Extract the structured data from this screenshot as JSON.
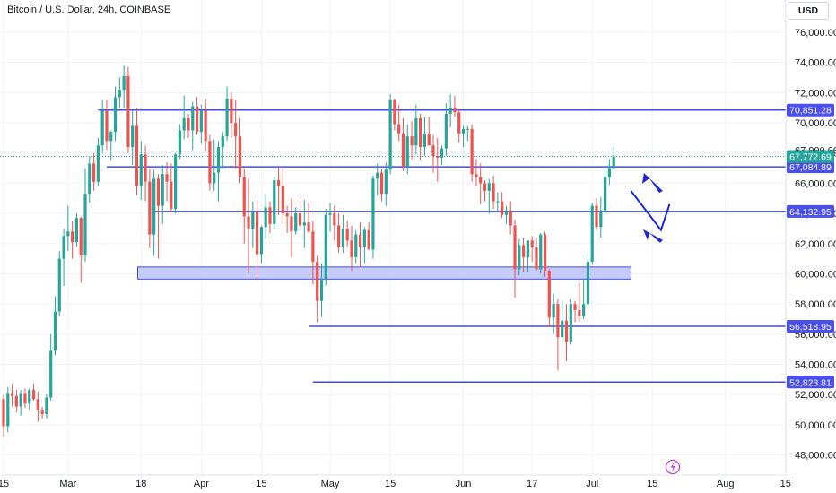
{
  "header": {
    "title": "Bitcoin / U.S. Dollar, 24h, COINBASE",
    "currency_button": "USD"
  },
  "chart_data": {
    "type": "candlestick",
    "title": "Bitcoin / U.S. Dollar, 24h, COINBASE",
    "ylim": [
      46500,
      77800
    ],
    "yticks": [
      48000,
      50000,
      52000,
      54000,
      56000,
      58000,
      60000,
      62000,
      64000,
      66000,
      68000,
      70000,
      72000,
      74000,
      76000
    ],
    "ytick_labels": [
      "48,000.00",
      "50,000.00",
      "52,000.00",
      "54,000.00",
      "56,000.00",
      "58,000.00",
      "60,000.00",
      "62,000.00",
      "64,000.00",
      "66,000.00",
      "68,000.00",
      "70,000.00",
      "72,000.00",
      "74,000.00",
      "76,000.00"
    ],
    "xticks": [
      {
        "label": "15",
        "i": 0
      },
      {
        "label": "Mar",
        "i": 15
      },
      {
        "label": "18",
        "i": 32
      },
      {
        "label": "Apr",
        "i": 46
      },
      {
        "label": "15",
        "i": 60
      },
      {
        "label": "May",
        "i": 76
      },
      {
        "label": "15",
        "i": 90
      },
      {
        "label": "Jun",
        "i": 107
      },
      {
        "label": "17",
        "i": 123
      },
      {
        "label": "Jul",
        "i": 137
      },
      {
        "label": "15",
        "i": 151
      },
      {
        "label": "Aug",
        "i": 168
      },
      {
        "label": "15",
        "i": 182
      }
    ],
    "bar_spacing_days": 1,
    "up_color": "#26a69a",
    "down_color": "#ef5350",
    "candles": [
      [
        51700,
        52000,
        49200,
        49900
      ],
      [
        49900,
        52500,
        49500,
        52100
      ],
      [
        52100,
        52700,
        51200,
        51900
      ],
      [
        51900,
        52300,
        50800,
        51200
      ],
      [
        51200,
        52300,
        50600,
        52100
      ],
      [
        52100,
        52400,
        51100,
        51400
      ],
      [
        51400,
        52400,
        51000,
        52300
      ],
      [
        52300,
        52700,
        51600,
        51700
      ],
      [
        51700,
        52200,
        50200,
        51000
      ],
      [
        51000,
        51200,
        50400,
        50700
      ],
      [
        50700,
        52000,
        50400,
        51800
      ],
      [
        51800,
        56000,
        51600,
        54900
      ],
      [
        54900,
        58500,
        54600,
        57500
      ],
      [
        57500,
        61500,
        57200,
        61000
      ],
      [
        61000,
        63000,
        59200,
        62500
      ],
      [
        62500,
        64500,
        61500,
        62800
      ],
      [
        62800,
        63500,
        61000,
        62100
      ],
      [
        62100,
        64000,
        61800,
        63700
      ],
      [
        63700,
        63800,
        59400,
        61200
      ],
      [
        61200,
        67000,
        60800,
        65300
      ],
      [
        65300,
        67800,
        64700,
        67300
      ],
      [
        67300,
        68000,
        65500,
        66100
      ],
      [
        66100,
        69000,
        65800,
        68500
      ],
      [
        68500,
        71500,
        68000,
        70800
      ],
      [
        70800,
        71500,
        68200,
        68800
      ],
      [
        68800,
        69500,
        67500,
        69400
      ],
      [
        69400,
        72400,
        68800,
        71700
      ],
      [
        71700,
        73000,
        71000,
        72200
      ],
      [
        72200,
        73800,
        71000,
        73100
      ],
      [
        73100,
        73700,
        68000,
        68400
      ],
      [
        68400,
        70800,
        67200,
        69800
      ],
      [
        69800,
        71000,
        65200,
        65800
      ],
      [
        65800,
        68800,
        64900,
        67900
      ],
      [
        67900,
        68500,
        64800,
        66100
      ],
      [
        66100,
        67000,
        61700,
        62600
      ],
      [
        62600,
        66900,
        61200,
        66300
      ],
      [
        66300,
        66600,
        61000,
        64500
      ],
      [
        64500,
        67200,
        63300,
        66600
      ],
      [
        66600,
        67400,
        64800,
        66100
      ],
      [
        66100,
        67300,
        64100,
        64300
      ],
      [
        64300,
        68000,
        64000,
        67900
      ],
      [
        67900,
        69900,
        67600,
        69500
      ],
      [
        69500,
        71800,
        68900,
        70300
      ],
      [
        70300,
        70600,
        69000,
        69500
      ],
      [
        69500,
        71400,
        68200,
        71100
      ],
      [
        71100,
        71700,
        69200,
        69400
      ],
      [
        69400,
        71200,
        68600,
        70800
      ],
      [
        70800,
        71600,
        68100,
        68800
      ],
      [
        68800,
        69200,
        65500,
        66000
      ],
      [
        66000,
        68900,
        65500,
        66700
      ],
      [
        66700,
        68800,
        64800,
        68400
      ],
      [
        68400,
        69400,
        67000,
        69100
      ],
      [
        69100,
        72400,
        68800,
        71600
      ],
      [
        71600,
        72000,
        69000,
        70000
      ],
      [
        70000,
        71500,
        67000,
        69100
      ],
      [
        69100,
        70300,
        66000,
        66400
      ],
      [
        66400,
        67000,
        62000,
        63800
      ],
      [
        63800,
        66300,
        60000,
        63000
      ],
      [
        63000,
        64800,
        61700,
        64100
      ],
      [
        64100,
        64900,
        59600,
        61300
      ],
      [
        61300,
        63200,
        60700,
        63100
      ],
      [
        63100,
        65300,
        62300,
        64400
      ],
      [
        64400,
        64800,
        62700,
        63300
      ],
      [
        63300,
        66400,
        63000,
        66200
      ],
      [
        66200,
        67100,
        63900,
        65800
      ],
      [
        65800,
        67000,
        63300,
        64000
      ],
      [
        64000,
        64500,
        62700,
        63800
      ],
      [
        63800,
        65000,
        61100,
        62800
      ],
      [
        62800,
        64400,
        62600,
        64000
      ],
      [
        64000,
        65100,
        62900,
        63200
      ],
      [
        63200,
        64900,
        61700,
        63400
      ],
      [
        63400,
        64700,
        62700,
        62800
      ],
      [
        62800,
        63500,
        59300,
        60800
      ],
      [
        60800,
        61200,
        56800,
        58200
      ],
      [
        58200,
        60700,
        57100,
        59600
      ],
      [
        59600,
        64300,
        59200,
        63900
      ],
      [
        63900,
        64700,
        62800,
        64000
      ],
      [
        64000,
        64500,
        62200,
        63200
      ],
      [
        63200,
        64000,
        61400,
        61800
      ],
      [
        61800,
        63900,
        61400,
        63000
      ],
      [
        63000,
        63500,
        61800,
        62200
      ],
      [
        62200,
        63200,
        60200,
        61100
      ],
      [
        61100,
        62900,
        60700,
        62600
      ],
      [
        62600,
        63400,
        60500,
        61800
      ],
      [
        61800,
        63100,
        60700,
        62900
      ],
      [
        62900,
        63400,
        61900,
        61600
      ],
      [
        61600,
        66500,
        61000,
        66300
      ],
      [
        66300,
        67300,
        65200,
        66700
      ],
      [
        66700,
        66900,
        64800,
        65300
      ],
      [
        65300,
        67400,
        64500,
        66900
      ],
      [
        66900,
        71900,
        66600,
        71500
      ],
      [
        71500,
        71600,
        69500,
        69900
      ],
      [
        69900,
        71200,
        68800,
        69300
      ],
      [
        69300,
        70300,
        66800,
        67100
      ],
      [
        67100,
        69900,
        66600,
        69100
      ],
      [
        69100,
        70100,
        67600,
        68500
      ],
      [
        68500,
        71200,
        67900,
        70300
      ],
      [
        70300,
        70600,
        67500,
        68400
      ],
      [
        68400,
        70400,
        67800,
        69300
      ],
      [
        69300,
        70400,
        68500,
        68500
      ],
      [
        68500,
        69200,
        66700,
        67800
      ],
      [
        67800,
        69000,
        66100,
        67700
      ],
      [
        67700,
        68500,
        67200,
        68300
      ],
      [
        68300,
        71300,
        67800,
        70600
      ],
      [
        70600,
        71900,
        69700,
        71000
      ],
      [
        71000,
        71800,
        70400,
        70700
      ],
      [
        70700,
        70900,
        68700,
        69300
      ],
      [
        69300,
        69800,
        68400,
        69600
      ],
      [
        69600,
        69800,
        68800,
        69600
      ],
      [
        69600,
        69900,
        66100,
        66600
      ],
      [
        66600,
        67600,
        65800,
        66400
      ],
      [
        66400,
        67300,
        64600,
        66000
      ],
      [
        66000,
        66200,
        64800,
        65500
      ],
      [
        65500,
        66300,
        64000,
        66000
      ],
      [
        66000,
        66500,
        64300,
        64800
      ],
      [
        64800,
        65400,
        64100,
        64800
      ],
      [
        64800,
        65400,
        63700,
        63900
      ],
      [
        63900,
        64500,
        63300,
        64200
      ],
      [
        64200,
        64800,
        62600,
        63200
      ],
      [
        63200,
        63600,
        58400,
        60300
      ],
      [
        60300,
        62300,
        59900,
        61900
      ],
      [
        61900,
        62400,
        60100,
        61100
      ],
      [
        61100,
        62100,
        60100,
        62200
      ],
      [
        62200,
        62500,
        60800,
        61800
      ],
      [
        61800,
        62400,
        60200,
        60300
      ],
      [
        60300,
        62700,
        60000,
        62600
      ],
      [
        62600,
        62800,
        59800,
        60200
      ],
      [
        60200,
        60300,
        56500,
        57100
      ],
      [
        57100,
        58700,
        56000,
        58000
      ],
      [
        58000,
        58300,
        53600,
        55800
      ],
      [
        55800,
        58200,
        55500,
        56900
      ],
      [
        56900,
        58000,
        54200,
        55500
      ],
      [
        55500,
        58300,
        55300,
        58000
      ],
      [
        58000,
        58200,
        56800,
        57600
      ],
      [
        57600,
        59400,
        56800,
        57200
      ],
      [
        57200,
        59700,
        57000,
        58000
      ],
      [
        58000,
        61300,
        57800,
        60800
      ],
      [
        60800,
        64700,
        60600,
        64500
      ],
      [
        64500,
        65000,
        62900,
        63100
      ],
      [
        63100,
        65100,
        62400,
        64200
      ],
      [
        64200,
        67000,
        64000,
        66400
      ],
      [
        66400,
        67600,
        65900,
        67000
      ],
      [
        67000,
        68400,
        66900,
        67773
      ]
    ],
    "levels": [
      {
        "price": 70851.28,
        "label": "70,851.28",
        "from_i": 22
      },
      {
        "price": 67084.89,
        "label": "67,084.89",
        "from_i": 24
      },
      {
        "price": 64132.95,
        "label": "64,132.95",
        "from_i": 35
      },
      {
        "price": 56518.95,
        "label": "56,518.95",
        "from_i": 71
      },
      {
        "price": 52823.81,
        "label": "52,823.81",
        "from_i": 72
      }
    ],
    "zone": {
      "from_price": 59650,
      "to_price": 60450,
      "from_i": 31,
      "to_i": 145
    },
    "current_price": {
      "value": 67772.69,
      "label": "67,772.69",
      "partial_label": "67,000.00"
    },
    "annotations": {
      "projection_path": [
        {
          "i": 146,
          "price": 65500
        },
        {
          "i": 153,
          "price": 62900
        },
        {
          "i": 155,
          "price": 64600
        }
      ],
      "arrows": [
        {
          "direction": "up",
          "i": 148,
          "price": 66200
        },
        {
          "direction": "down",
          "i": 148,
          "price": 63300
        }
      ]
    },
    "colors": {
      "level_line": "#3d4ee6",
      "zone_fill": "#c7cbfb",
      "price_label_bg": "#4a4ff0",
      "current_bg": "#26a69a",
      "annotation": "#1c27d6",
      "grid": "#f0f3fa"
    },
    "watermark_icon": "tradingview-logo-icon"
  }
}
